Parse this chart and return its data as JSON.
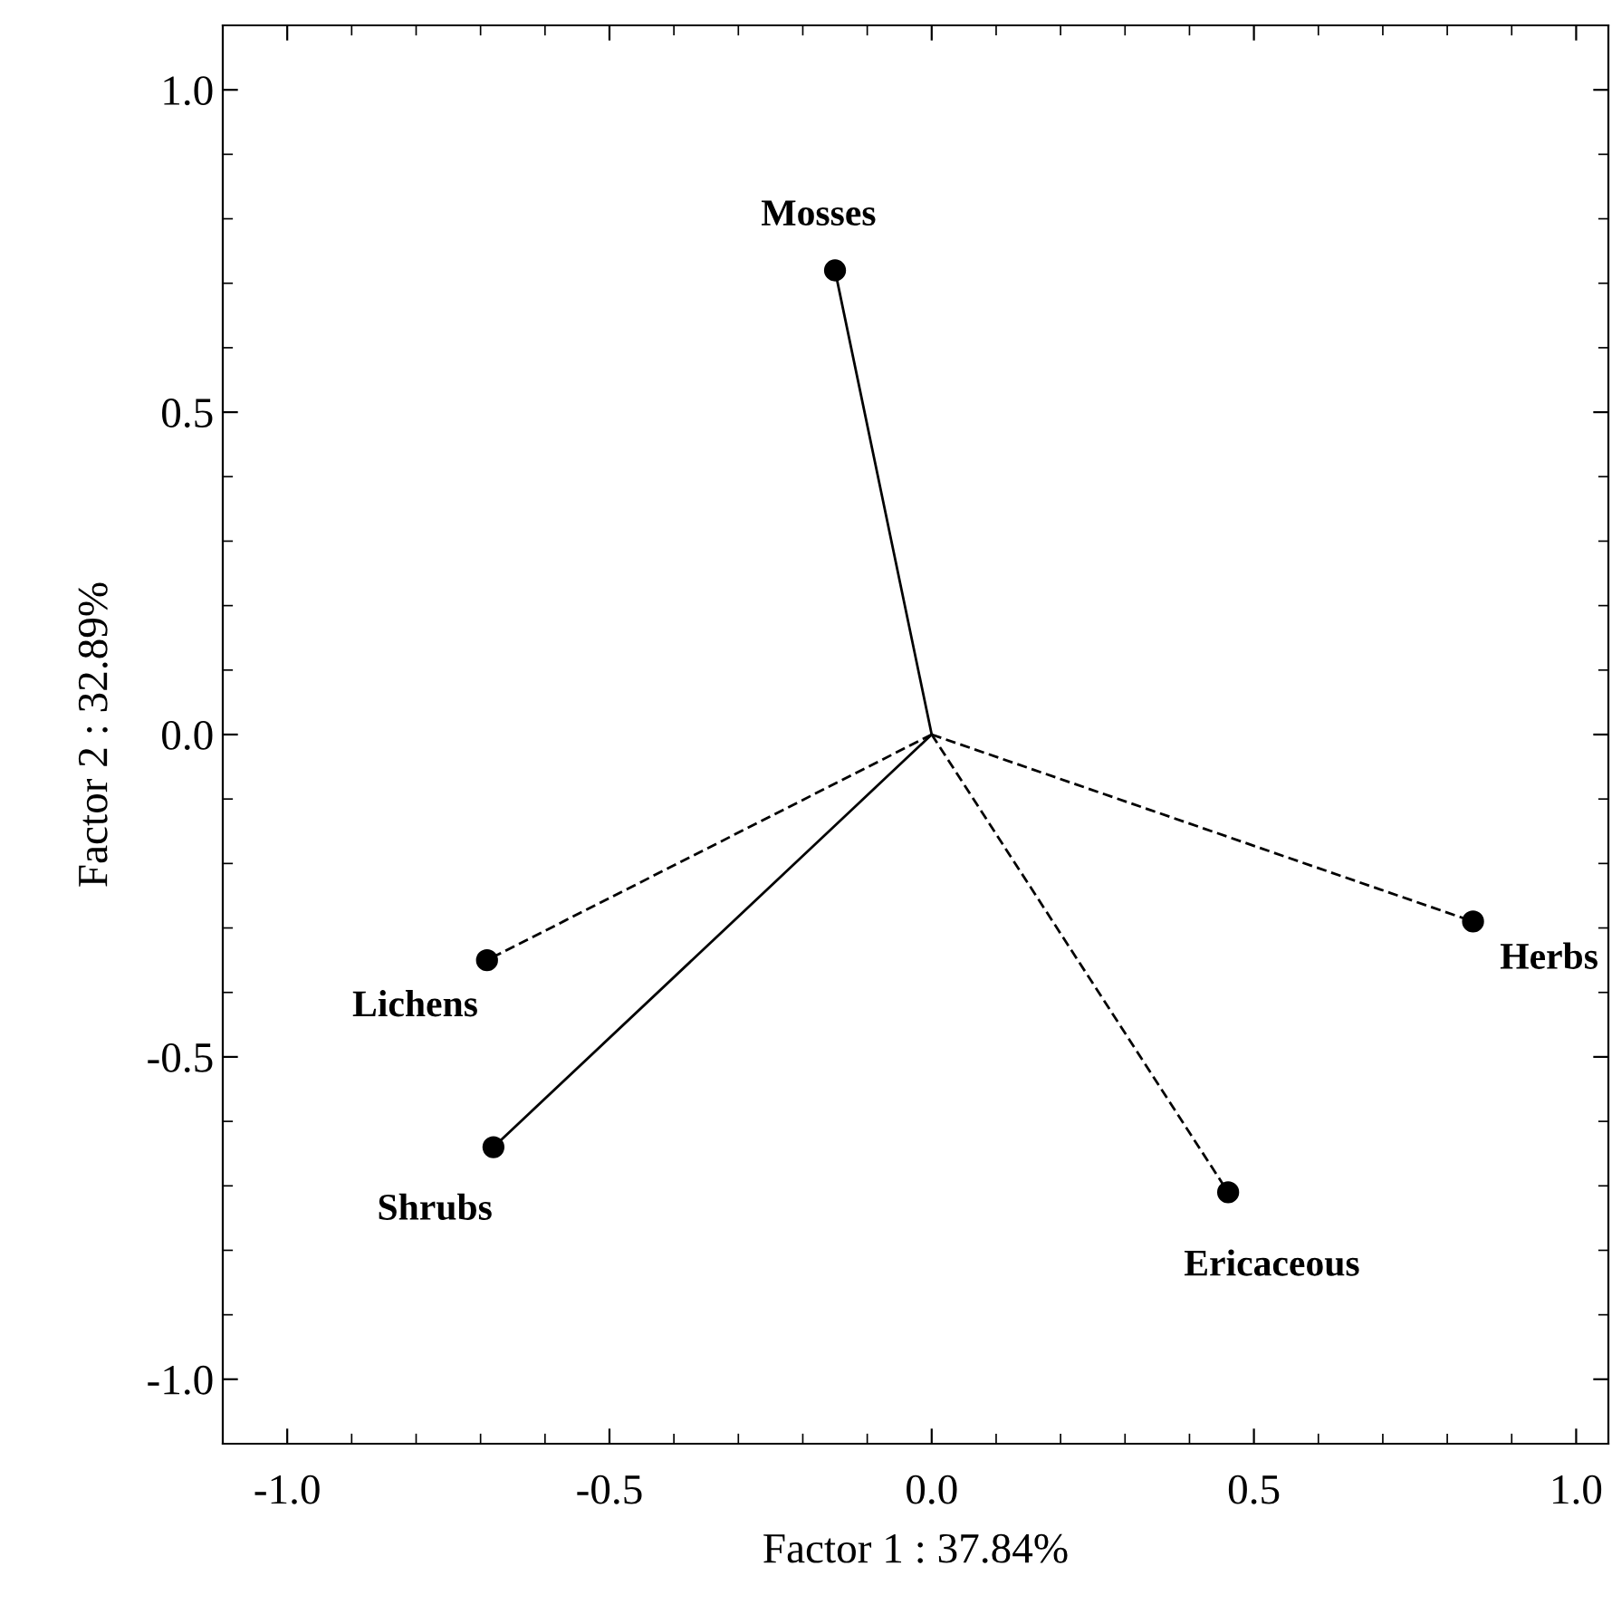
{
  "chart_data": {
    "type": "scatter",
    "xlabel": "Factor 1 : 37.84%",
    "ylabel": "Factor 2 : 32.89%",
    "xlim": [
      -1.1,
      1.05
    ],
    "ylim": [
      -1.1,
      1.1
    ],
    "xticks": [
      {
        "value": -1.0,
        "label": "-1.0"
      },
      {
        "value": -0.5,
        "label": "-0.5"
      },
      {
        "value": 0.0,
        "label": "0.0"
      },
      {
        "value": 0.5,
        "label": "0.5"
      },
      {
        "value": 1.0,
        "label": "1.0"
      }
    ],
    "yticks": [
      {
        "value": -1.0,
        "label": "-1.0"
      },
      {
        "value": -0.5,
        "label": "-0.5"
      },
      {
        "value": 0.0,
        "label": "0.0"
      },
      {
        "value": 0.5,
        "label": "0.5"
      },
      {
        "value": 1.0,
        "label": "1.0"
      }
    ],
    "grid": false,
    "legend": false,
    "series": [
      {
        "color": "#000000",
        "marker": "circle",
        "x": [
          -0.15,
          -0.69,
          -0.68,
          0.46,
          0.84
        ],
        "values": [
          0.72,
          -0.35,
          -0.64,
          -0.71,
          -0.29
        ]
      },
      {
        "type": "line",
        "color": "#000000",
        "line_style": "solid",
        "x": [
          0.0,
          -0.15
        ],
        "values": [
          0.0,
          0.72
        ]
      },
      {
        "type": "line",
        "color": "#000000",
        "line_style": "dashed",
        "x": [
          0.0,
          -0.69
        ],
        "values": [
          0.0,
          -0.35
        ]
      },
      {
        "type": "line",
        "color": "#000000",
        "line_style": "solid",
        "x": [
          0.0,
          -0.68
        ],
        "values": [
          0.0,
          -0.64
        ]
      },
      {
        "type": "line",
        "color": "#000000",
        "line_style": "dashed",
        "x": [
          0.0,
          0.46
        ],
        "values": [
          0.0,
          -0.71
        ]
      },
      {
        "type": "line",
        "color": "#000000",
        "line_style": "dashed",
        "x": [
          0.0,
          0.84
        ],
        "values": [
          0.0,
          -0.29
        ]
      }
    ],
    "annotations": [
      {
        "text": "Mosses",
        "x": -0.15,
        "y": 0.72
      },
      {
        "text": "Lichens",
        "x": -0.69,
        "y": -0.35
      },
      {
        "text": "Shrubs",
        "x": -0.68,
        "y": -0.64
      },
      {
        "text": "Ericaceous",
        "x": 0.46,
        "y": -0.71
      },
      {
        "text": "Herbs",
        "x": 0.84,
        "y": -0.29
      }
    ]
  }
}
